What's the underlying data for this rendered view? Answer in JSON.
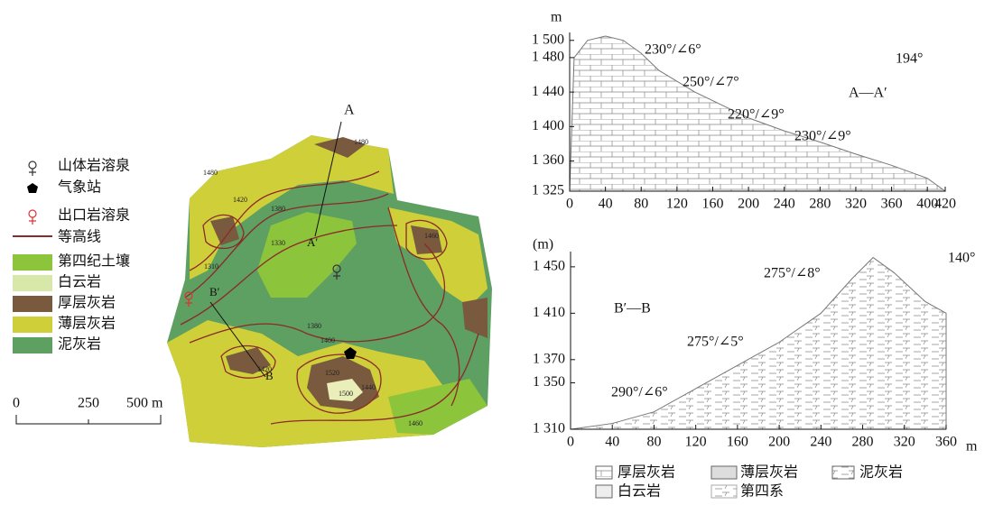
{
  "map": {
    "legend": [
      "山体岩溶泉",
      "气象站",
      "出口岩溶泉",
      "等高线",
      "第四纪土壤",
      "白云岩",
      "厚层灰岩",
      "薄层灰岩",
      "泥灰岩"
    ],
    "scale_labels": [
      "0",
      "250",
      "500 m"
    ],
    "section_labels": [
      "A",
      "A′",
      "B′",
      "B"
    ],
    "contour_labels": [
      "1480",
      "1480",
      "1420",
      "1380",
      "1330",
      "1310",
      "1380",
      "1400",
      "1420",
      "1500",
      "1520",
      "1460",
      "1440",
      "1460"
    ]
  },
  "profile_a": {
    "y_label": "m",
    "xlim": [
      0,
      420
    ],
    "ylim": [
      1325,
      1505
    ],
    "xticks": [
      0,
      40,
      80,
      120,
      160,
      200,
      240,
      280,
      320,
      360,
      400,
      420
    ],
    "yticks": [
      {
        "value": 1325,
        "label": "1 325"
      },
      {
        "value": 1360,
        "label": "1 360"
      },
      {
        "value": 1400,
        "label": "1 400"
      },
      {
        "value": 1440,
        "label": "1 440"
      },
      {
        "value": 1480,
        "label": "1 480"
      },
      {
        "value": 1500,
        "label": "1 500"
      }
    ],
    "x": [
      0,
      5,
      20,
      40,
      60,
      80,
      100,
      140,
      180,
      200,
      240,
      280,
      320,
      360,
      400,
      420
    ],
    "y": [
      1325,
      1480,
      1500,
      1505,
      1500,
      1485,
      1465,
      1440,
      1420,
      1410,
      1395,
      1382,
      1368,
      1355,
      1340,
      1325
    ],
    "annotations": [
      "230°/∠6°",
      "250°/∠7°",
      "220°/∠9°",
      "230°/∠9°",
      "194°",
      "A—A′"
    ]
  },
  "profile_b": {
    "y_label": "(m)",
    "x_label": "m",
    "xlim": [
      0,
      360
    ],
    "ylim": [
      1310,
      1460
    ],
    "xticks": [
      0,
      40,
      80,
      120,
      160,
      200,
      240,
      280,
      320,
      360
    ],
    "yticks": [
      {
        "value": 1310,
        "label": "1 310"
      },
      {
        "value": 1350,
        "label": "1 350"
      },
      {
        "value": 1370,
        "label": "1 370"
      },
      {
        "value": 1410,
        "label": "1 410"
      },
      {
        "value": 1450,
        "label": "1 450"
      }
    ],
    "x": [
      0,
      40,
      80,
      120,
      160,
      200,
      240,
      270,
      290,
      310,
      340,
      360,
      360
    ],
    "y": [
      1310,
      1315,
      1325,
      1345,
      1365,
      1385,
      1410,
      1440,
      1458,
      1445,
      1420,
      1410,
      1310
    ],
    "annotations": [
      "275°/∠8°",
      "275°/∠5°",
      "290°/∠6°",
      "140°",
      "B′—B"
    ]
  },
  "section_legend": [
    "厚层灰岩",
    "薄层灰岩",
    "泥灰岩",
    "白云岩",
    "第四系"
  ]
}
